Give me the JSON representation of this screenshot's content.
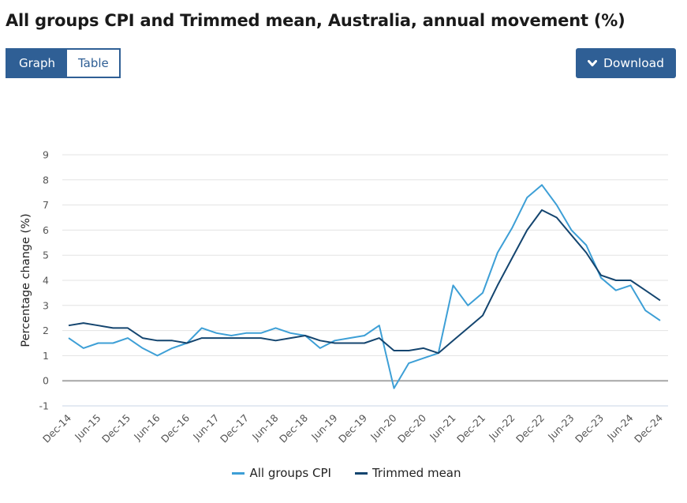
{
  "header": {
    "title": "All groups CPI and Trimmed mean, Australia, annual movement (%)"
  },
  "view_toggle": {
    "graph_label": "Graph",
    "table_label": "Table",
    "selected": "Graph"
  },
  "download": {
    "label": "Download",
    "icon": "chevron-down-icon"
  },
  "colors": {
    "accent": "#2f5f95",
    "cpi": "#3d9fd6",
    "trimmed": "#14456f",
    "grid": "#e3e3e3",
    "zero_line": "#a6a6a6"
  },
  "chart_data": {
    "type": "line",
    "title": "All groups CPI and Trimmed mean, Australia, annual movement (%)",
    "xlabel": "",
    "ylabel": "Percentage change (%)",
    "ylim": [
      -1,
      9
    ],
    "yticks": [
      9,
      8,
      7,
      6,
      5,
      4,
      3,
      2,
      1,
      0,
      -1
    ],
    "grid": true,
    "legend_position": "bottom-center",
    "x": [
      "Dec-14",
      "Mar-15",
      "Jun-15",
      "Sep-15",
      "Dec-15",
      "Mar-16",
      "Jun-16",
      "Sep-16",
      "Dec-16",
      "Mar-17",
      "Jun-17",
      "Sep-17",
      "Dec-17",
      "Mar-18",
      "Jun-18",
      "Sep-18",
      "Dec-18",
      "Mar-19",
      "Jun-19",
      "Sep-19",
      "Dec-19",
      "Mar-20",
      "Jun-20",
      "Sep-20",
      "Dec-20",
      "Mar-21",
      "Jun-21",
      "Sep-21",
      "Dec-21",
      "Mar-22",
      "Jun-22",
      "Sep-22",
      "Dec-22",
      "Mar-23",
      "Jun-23",
      "Sep-23",
      "Dec-23",
      "Mar-24",
      "Jun-24",
      "Sep-24",
      "Dec-24"
    ],
    "xtick_labels": [
      "Dec-14",
      "Jun-15",
      "Dec-15",
      "Jun-16",
      "Dec-16",
      "Jun-17",
      "Dec-17",
      "Jun-18",
      "Dec-18",
      "Jun-19",
      "Dec-19",
      "Jun-20",
      "Dec-20",
      "Jun-21",
      "Dec-21",
      "Jun-22",
      "Dec-22",
      "Jun-23",
      "Dec-23",
      "Jun-24",
      "Dec-24"
    ],
    "series": [
      {
        "name": "All groups CPI",
        "color": "#3d9fd6",
        "values": [
          1.7,
          1.3,
          1.5,
          1.5,
          1.7,
          1.3,
          1.0,
          1.3,
          1.5,
          2.1,
          1.9,
          1.8,
          1.9,
          1.9,
          2.1,
          1.9,
          1.8,
          1.3,
          1.6,
          1.7,
          1.8,
          2.2,
          -0.3,
          0.7,
          0.9,
          1.1,
          3.8,
          3.0,
          3.5,
          5.1,
          6.1,
          7.3,
          7.8,
          7.0,
          6.0,
          5.4,
          4.1,
          3.6,
          3.8,
          2.8,
          2.4
        ]
      },
      {
        "name": "Trimmed mean",
        "color": "#14456f",
        "values": [
          2.2,
          2.3,
          2.2,
          2.1,
          2.1,
          1.7,
          1.6,
          1.6,
          1.5,
          1.7,
          1.7,
          1.7,
          1.7,
          1.7,
          1.6,
          1.7,
          1.8,
          1.6,
          1.5,
          1.5,
          1.5,
          1.7,
          1.2,
          1.2,
          1.3,
          1.1,
          1.6,
          2.1,
          2.6,
          3.8,
          4.9,
          6.0,
          6.8,
          6.5,
          5.8,
          5.1,
          4.2,
          4.0,
          4.0,
          3.6,
          3.2
        ]
      }
    ]
  }
}
